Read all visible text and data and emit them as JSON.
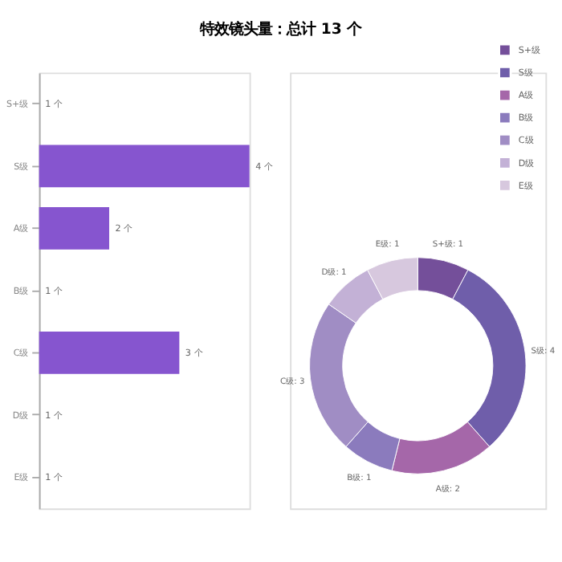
{
  "chart_data": [
    {
      "type": "bar",
      "title": "特效镜头量：总计 13 个",
      "orientation": "horizontal",
      "categories": [
        "S+级",
        "S级",
        "A级",
        "B级",
        "C级",
        "D级",
        "E级"
      ],
      "values": [
        1,
        4,
        2,
        1,
        3,
        1,
        1
      ],
      "value_labels": [
        "1 个",
        "4 个",
        "2 个",
        "1 个",
        "3 个",
        "1 个",
        "1 个"
      ],
      "color": "#8655cf",
      "xlim": [
        1,
        4
      ],
      "tick_labels": "y"
    },
    {
      "type": "donut",
      "categories": [
        "S+级",
        "S级",
        "A级",
        "B级",
        "C级",
        "D级",
        "E级"
      ],
      "values": [
        1,
        4,
        2,
        1,
        3,
        1,
        1
      ],
      "colors": [
        "#744f9a",
        "#6f5eaa",
        "#a567a9",
        "#8b7bbd",
        "#a08dc4",
        "#c3b1d6",
        "#d7c8de"
      ],
      "value_labels": [
        "S+级: 1",
        "S级: 4",
        "A级: 2",
        "B级: 1",
        "C级: 3",
        "D级: 1",
        "E级: 1"
      ],
      "legend": "top right"
    }
  ]
}
